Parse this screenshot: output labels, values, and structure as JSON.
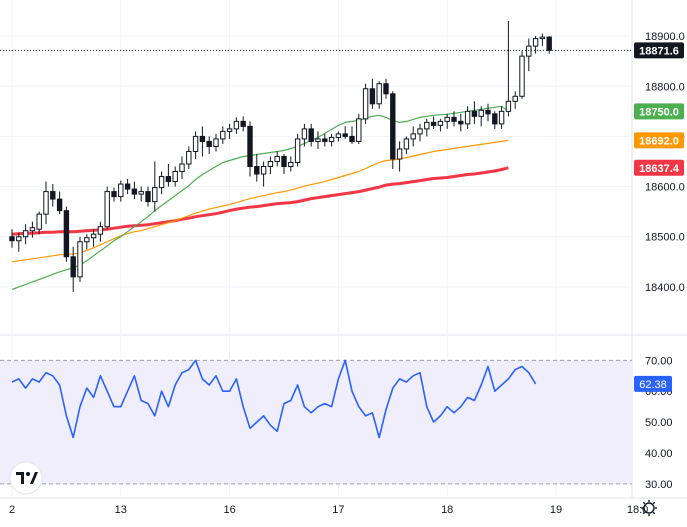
{
  "chart_data": [
    {
      "type": "candlestick",
      "title": "",
      "grid": true,
      "ylim": [
        18330,
        18960
      ],
      "y_ticks": [
        "18900.0",
        "18800.0",
        "18700.0",
        "18600.0",
        "18500.0",
        "18400.0"
      ],
      "y_tick_values": [
        18900,
        18800,
        18700,
        18600,
        18500,
        18400
      ],
      "x_ticks": [
        "2",
        "13",
        "16",
        "17",
        "18",
        "19",
        "18:0"
      ],
      "x_tick_index": [
        0,
        16,
        32,
        48,
        64,
        80,
        92
      ],
      "current_price_label": "18871.6",
      "current_price": 18871.6,
      "candles": [
        [
          18500,
          18515,
          18478,
          18492
        ],
        [
          18492,
          18508,
          18470,
          18500
        ],
        [
          18500,
          18525,
          18485,
          18512
        ],
        [
          18512,
          18530,
          18498,
          18518
        ],
        [
          18515,
          18550,
          18505,
          18545
        ],
        [
          18545,
          18610,
          18525,
          18590
        ],
        [
          18590,
          18605,
          18560,
          18575
        ],
        [
          18575,
          18590,
          18545,
          18552
        ],
        [
          18552,
          18560,
          18450,
          18460
        ],
        [
          18460,
          18480,
          18390,
          18420
        ],
        [
          18420,
          18500,
          18410,
          18490
        ],
        [
          18490,
          18505,
          18475,
          18498
        ],
        [
          18498,
          18515,
          18480,
          18505
        ],
        [
          18505,
          18530,
          18490,
          18520
        ],
        [
          18520,
          18600,
          18515,
          18590
        ],
        [
          18590,
          18598,
          18570,
          18580
        ],
        [
          18580,
          18612,
          18570,
          18605
        ],
        [
          18605,
          18615,
          18585,
          18595
        ],
        [
          18595,
          18610,
          18575,
          18585
        ],
        [
          18585,
          18600,
          18570,
          18590
        ],
        [
          18590,
          18600,
          18560,
          18570
        ],
        [
          18570,
          18650,
          18550,
          18598
        ],
        [
          18598,
          18630,
          18585,
          18620
        ],
        [
          18620,
          18645,
          18600,
          18610
        ],
        [
          18610,
          18640,
          18600,
          18630
        ],
        [
          18630,
          18660,
          18615,
          18645
        ],
        [
          18645,
          18680,
          18635,
          18670
        ],
        [
          18670,
          18710,
          18655,
          18700
        ],
        [
          18700,
          18720,
          18660,
          18690
        ],
        [
          18690,
          18700,
          18665,
          18680
        ],
        [
          18680,
          18705,
          18670,
          18695
        ],
        [
          18695,
          18720,
          18685,
          18710
        ],
        [
          18710,
          18725,
          18695,
          18715
        ],
        [
          18715,
          18738,
          18705,
          18730
        ],
        [
          18730,
          18740,
          18710,
          18720
        ],
        [
          18720,
          18730,
          18620,
          18640
        ],
        [
          18640,
          18665,
          18610,
          18625
        ],
        [
          18625,
          18650,
          18600,
          18640
        ],
        [
          18640,
          18660,
          18625,
          18650
        ],
        [
          18650,
          18670,
          18640,
          18660
        ],
        [
          18660,
          18665,
          18625,
          18640
        ],
        [
          18640,
          18660,
          18630,
          18648
        ],
        [
          18648,
          18705,
          18640,
          18695
        ],
        [
          18695,
          18725,
          18680,
          18715
        ],
        [
          18715,
          18725,
          18680,
          18690
        ],
        [
          18690,
          18710,
          18675,
          18695
        ],
        [
          18695,
          18705,
          18680,
          18690
        ],
        [
          18690,
          18705,
          18680,
          18698
        ],
        [
          18698,
          18710,
          18690,
          18705
        ],
        [
          18705,
          18720,
          18695,
          18700
        ],
        [
          18700,
          18720,
          18685,
          18690
        ],
        [
          18690,
          18745,
          18685,
          18735
        ],
        [
          18735,
          18805,
          18725,
          18795
        ],
        [
          18795,
          18815,
          18755,
          18765
        ],
        [
          18765,
          18810,
          18755,
          18805
        ],
        [
          18805,
          18815,
          18775,
          18785
        ],
        [
          18785,
          18790,
          18635,
          18655
        ],
        [
          18655,
          18690,
          18630,
          18675
        ],
        [
          18675,
          18700,
          18665,
          18695
        ],
        [
          18695,
          18720,
          18680,
          18705
        ],
        [
          18705,
          18725,
          18690,
          18715
        ],
        [
          18715,
          18735,
          18700,
          18728
        ],
        [
          18728,
          18740,
          18715,
          18722
        ],
        [
          18722,
          18735,
          18710,
          18730
        ],
        [
          18730,
          18745,
          18715,
          18738
        ],
        [
          18738,
          18750,
          18720,
          18730
        ],
        [
          18730,
          18745,
          18710,
          18725
        ],
        [
          18725,
          18760,
          18715,
          18750
        ],
        [
          18750,
          18770,
          18725,
          18740
        ],
        [
          18740,
          18760,
          18720,
          18752
        ],
        [
          18752,
          18765,
          18730,
          18745
        ],
        [
          18745,
          18750,
          18715,
          18725
        ],
        [
          18725,
          18760,
          18715,
          18750
        ],
        [
          18750,
          18930,
          18740,
          18770
        ],
        [
          18770,
          18790,
          18755,
          18780
        ],
        [
          18780,
          18870,
          18775,
          18860
        ],
        [
          18860,
          18895,
          18830,
          18880
        ],
        [
          18880,
          18900,
          18865,
          18895
        ],
        [
          18895,
          18905,
          18880,
          18898
        ],
        [
          18898,
          18900,
          18865,
          18871.6
        ]
      ],
      "series": [
        {
          "color": "#f23645",
          "price_label": "18637.4",
          "values": [
            18505,
            18506,
            18507,
            18507,
            18508,
            18509,
            18509,
            18510,
            18510,
            18510,
            18511,
            18512,
            18513,
            18514,
            18515,
            18517,
            18519,
            18521,
            18522,
            18523,
            18524,
            18526,
            18528,
            18530,
            18532,
            18535,
            18537,
            18540,
            18542,
            18544,
            18546,
            18549,
            18552,
            18555,
            18557,
            18559,
            18560,
            18562,
            18564,
            18566,
            18567,
            18568,
            18570,
            18573,
            18576,
            18578,
            18580,
            18582,
            18584,
            18586,
            18588,
            18590,
            18593,
            18596,
            18599,
            18603,
            18605,
            18606,
            18608,
            18610,
            18612,
            18614,
            18616,
            18617,
            18618,
            18620,
            18622,
            18624,
            18625,
            18627,
            18629,
            18631,
            18634,
            18637.4
          ]
        },
        {
          "color": "#ff9800",
          "price_label": "18692.0",
          "values": [
            18450,
            18452,
            18454,
            18456,
            18458,
            18460,
            18462,
            18464,
            18465,
            18466,
            18468,
            18473,
            18478,
            18484,
            18490,
            18496,
            18502,
            18506,
            18510,
            18512,
            18516,
            18520,
            18524,
            18528,
            18532,
            18537,
            18542,
            18547,
            18551,
            18555,
            18558,
            18561,
            18564,
            18568,
            18572,
            18576,
            18579,
            18582,
            18585,
            18588,
            18590,
            18593,
            18597,
            18601,
            18604,
            18607,
            18610,
            18614,
            18618,
            18622,
            18626,
            18630,
            18636,
            18642,
            18648,
            18652,
            18653,
            18655,
            18658,
            18661,
            18664,
            18667,
            18670,
            18672,
            18674,
            18676,
            18678,
            18680,
            18682,
            18684,
            18686,
            18688,
            18690,
            18692.0
          ]
        },
        {
          "color": "#4caf50",
          "price_label": "18750.0",
          "values": [
            18395,
            18400,
            18405,
            18410,
            18415,
            18420,
            18425,
            18430,
            18434,
            18438,
            18444,
            18452,
            18462,
            18472,
            18482,
            18492,
            18500,
            18510,
            18520,
            18530,
            18540,
            18552,
            18562,
            18572,
            18582,
            18592,
            18602,
            18614,
            18624,
            18632,
            18640,
            18648,
            18652,
            18656,
            18660,
            18662,
            18664,
            18666,
            18668,
            18670,
            18672,
            18676,
            18680,
            18686,
            18692,
            18698,
            18706,
            18714,
            18722,
            18728,
            18730,
            18732,
            18736,
            18740,
            18742,
            18738,
            18732,
            18728,
            18730,
            18734,
            18738,
            18740,
            18742,
            18743,
            18744,
            18746,
            18748,
            18750,
            18752,
            18754,
            18756,
            18758,
            18760,
            18750.0
          ]
        }
      ]
    },
    {
      "type": "line",
      "title": "",
      "ylim": [
        28,
        74
      ],
      "y_ticks": [
        "70.00",
        "60.00",
        "50.00",
        "40.00",
        "30.00"
      ],
      "y_tick_values": [
        70,
        60,
        50,
        40,
        30
      ],
      "bands": [
        30,
        70
      ],
      "current_value_label": "62.38",
      "series": [
        {
          "color": "#2962ff",
          "values": [
            63,
            64,
            61,
            64,
            63,
            66,
            65,
            62,
            52,
            45,
            55,
            61,
            58,
            65,
            60,
            55,
            55,
            60,
            65,
            57,
            56,
            52,
            60,
            55,
            62,
            66,
            67,
            70,
            64,
            62,
            65,
            60,
            60,
            64,
            55,
            48,
            50,
            52,
            49,
            47,
            56,
            57,
            62,
            55,
            53,
            55,
            56,
            55,
            64,
            70,
            60,
            55,
            52,
            53,
            45,
            54,
            61,
            64,
            63,
            65,
            66,
            55,
            50,
            52,
            55,
            53,
            55,
            58,
            57,
            62,
            68,
            60,
            62,
            64,
            67,
            68,
            66,
            62.38
          ]
        }
      ]
    }
  ]
}
